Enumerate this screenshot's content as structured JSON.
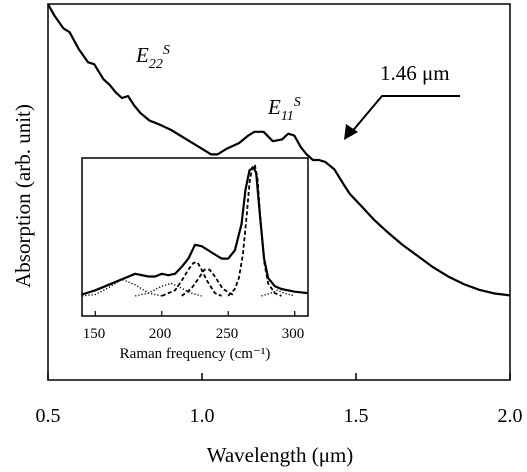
{
  "chart_data": [
    {
      "type": "line",
      "xlabel": "Wavelength  (μm)",
      "ylabel": "Absorption  (arb. unit)",
      "xlim": [
        0.5,
        2.0
      ],
      "ylim": [
        0,
        100
      ],
      "x_ticks": [
        "0.5",
        "1.0",
        "1.5",
        "2.0"
      ],
      "y_ticks_shown": false,
      "grid": false,
      "series": [
        {
          "x": [
            0.5,
            0.52,
            0.55,
            0.57,
            0.6,
            0.63,
            0.65,
            0.68,
            0.7,
            0.72,
            0.74,
            0.76,
            0.78,
            0.8,
            0.83,
            0.86,
            0.9,
            0.95,
            1.0,
            1.03,
            1.05,
            1.08,
            1.12,
            1.15,
            1.17,
            1.2,
            1.23,
            1.26,
            1.28,
            1.3,
            1.32,
            1.34,
            1.36,
            1.38,
            1.4,
            1.43,
            1.46,
            1.48,
            1.52,
            1.56,
            1.6,
            1.65,
            1.7,
            1.75,
            1.8,
            1.85,
            1.9,
            1.95,
            2.0
          ],
          "y": [
            100,
            97,
            93.5,
            92.5,
            88,
            84.5,
            84,
            80,
            78.5,
            76.5,
            75,
            75.5,
            73,
            71,
            69,
            68,
            66.5,
            64,
            61.5,
            60,
            60,
            61.5,
            63,
            65,
            66,
            66,
            63.5,
            64,
            65.5,
            65,
            62,
            60,
            58.5,
            58.5,
            58,
            56,
            52,
            49.5,
            46,
            42.5,
            39.5,
            36,
            33,
            30,
            27.5,
            25.5,
            24,
            23,
            22.5
          ]
        }
      ],
      "annotations": [
        {
          "text": "E",
          "subscript": "22",
          "superscript": "S",
          "x": 0.78,
          "y": 82
        },
        {
          "text": "E",
          "subscript": "11",
          "superscript": "S",
          "x": 1.25,
          "y": 69
        },
        {
          "text": "1.46 μm",
          "x": 1.52,
          "y": 83,
          "arrow_to": [
            1.46,
            64
          ]
        }
      ]
    },
    {
      "type": "line",
      "inset": true,
      "xlabel": "Raman frequency (cm⁻¹)",
      "xlim": [
        140,
        310
      ],
      "ylim": [
        0,
        100
      ],
      "x_ticks": [
        "150",
        "200",
        "250",
        "300"
      ],
      "grid": false,
      "series": [
        {
          "style": "solid",
          "x": [
            140,
            150,
            160,
            170,
            180,
            190,
            195,
            200,
            205,
            210,
            215,
            220,
            225,
            230,
            235,
            240,
            245,
            250,
            255,
            260,
            263,
            266,
            269,
            271,
            274,
            277,
            280,
            285,
            290,
            300,
            310
          ],
          "y": [
            4,
            7,
            11,
            15,
            19,
            17,
            17,
            19,
            18,
            19,
            24,
            30,
            40,
            39,
            36,
            33,
            30,
            30,
            36,
            55,
            80,
            94,
            96,
            92,
            60,
            30,
            16,
            10,
            8,
            6,
            5
          ]
        },
        {
          "style": "dashed",
          "x": [
            250,
            255,
            258,
            261,
            264,
            266,
            268,
            270,
            272,
            274,
            277,
            280,
            285,
            290
          ],
          "y": [
            3,
            8,
            16,
            33,
            62,
            85,
            96,
            98,
            88,
            62,
            28,
            12,
            5,
            3
          ]
        },
        {
          "style": "dashed",
          "x": [
            200,
            210,
            215,
            220,
            224,
            227,
            230,
            234,
            240,
            245
          ],
          "y": [
            3,
            7,
            14,
            22,
            27,
            27,
            22,
            14,
            5,
            3
          ]
        },
        {
          "style": "dashed",
          "x": [
            215,
            222,
            228,
            232,
            236,
            240,
            246,
            255
          ],
          "y": [
            3,
            8,
            16,
            22,
            22,
            17,
            8,
            3
          ]
        },
        {
          "style": "dotted",
          "x": [
            140,
            150,
            160,
            170,
            180,
            190,
            200
          ],
          "y": [
            3,
            4,
            9,
            15,
            11,
            5,
            3
          ]
        },
        {
          "style": "dotted",
          "x": [
            180,
            190,
            200,
            207,
            214,
            222,
            230
          ],
          "y": [
            3,
            5,
            10,
            12,
            9,
            5,
            3
          ]
        },
        {
          "style": "dotted",
          "x": [
            275,
            282,
            287,
            292,
            300
          ],
          "y": [
            3,
            5,
            7,
            5,
            3
          ]
        }
      ]
    }
  ]
}
